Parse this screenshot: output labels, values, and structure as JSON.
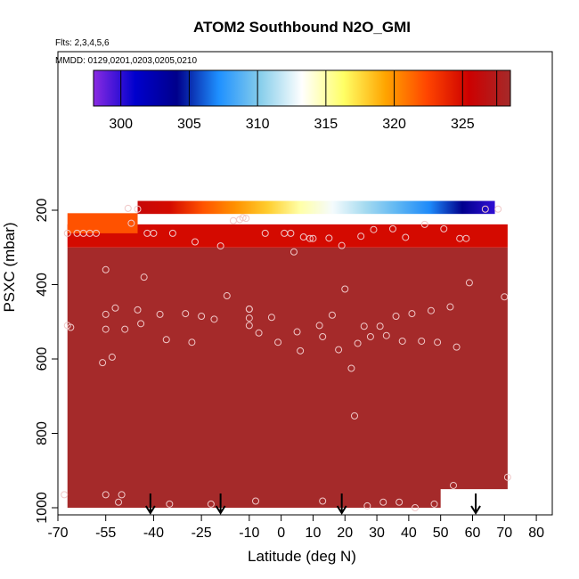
{
  "chart_data": {
    "type": "heatmap",
    "title": "ATOM2 Southbound N2O_GMI",
    "subtitle_flights": "Flts: 2,3,4,5,6",
    "subtitle_dates": "MMDD: 0129,0201,0203,0205,0210",
    "xlabel": "Latitude (deg N)",
    "ylabel": "PSXC (mbar)",
    "xlim": [
      -70,
      85
    ],
    "ylim": [
      1020,
      0
    ],
    "xticks": [
      "-70",
      "-55",
      "-40",
      "-25",
      "-10",
      "0",
      "10",
      "20",
      "30",
      "40",
      "50",
      "60",
      "70",
      "80"
    ],
    "xtick_values": [
      -70,
      -55,
      -40,
      -25,
      -10,
      0,
      10,
      20,
      30,
      40,
      50,
      60,
      70,
      80
    ],
    "yticks": [
      "200",
      "400",
      "600",
      "800",
      "1000"
    ],
    "ytick_values": [
      200,
      400,
      600,
      800,
      1000
    ],
    "colorbar": {
      "range": [
        298,
        328.5
      ],
      "ticks": [
        "300",
        "305",
        "310",
        "315",
        "320",
        "325"
      ],
      "tick_values": [
        300,
        305,
        310,
        315,
        320,
        325
      ],
      "colors": [
        "#8a2be2",
        "#0000cd",
        "#00008b",
        "#1e90ff",
        "#87ceeb",
        "#ffffff",
        "#ffff66",
        "#ffa500",
        "#ff4500",
        "#cd0000",
        "#a52a2a"
      ]
    },
    "field": {
      "value_low_troposphere": 328.5,
      "value_upper_layer": 325,
      "lat_range": [
        -67,
        71
      ],
      "pressure_range": [
        175,
        1000
      ]
    },
    "top_stratospheric_band": [
      {
        "lat": -45,
        "n2o": 326
      },
      {
        "lat": -35,
        "n2o": 325
      },
      {
        "lat": -25,
        "n2o": 322
      },
      {
        "lat": -15,
        "n2o": 320
      },
      {
        "lat": -5,
        "n2o": 318
      },
      {
        "lat": 5,
        "n2o": 315
      },
      {
        "lat": 15,
        "n2o": 313
      },
      {
        "lat": 25,
        "n2o": 311
      },
      {
        "lat": 35,
        "n2o": 309
      },
      {
        "lat": 45,
        "n2o": 307
      },
      {
        "lat": 55,
        "n2o": 304
      },
      {
        "lat": 65,
        "n2o": 300
      }
    ],
    "observation_points": [
      {
        "lat": -68,
        "p": 965
      },
      {
        "lat": -67,
        "p": 510
      },
      {
        "lat": -66,
        "p": 515
      },
      {
        "lat": -67,
        "p": 262
      },
      {
        "lat": -64,
        "p": 262
      },
      {
        "lat": -62,
        "p": 262
      },
      {
        "lat": -60,
        "p": 262
      },
      {
        "lat": -58,
        "p": 262
      },
      {
        "lat": -55,
        "p": 480
      },
      {
        "lat": -55,
        "p": 520
      },
      {
        "lat": -56,
        "p": 610
      },
      {
        "lat": -55,
        "p": 360
      },
      {
        "lat": -55,
        "p": 965
      },
      {
        "lat": -53,
        "p": 595
      },
      {
        "lat": -51,
        "p": 985
      },
      {
        "lat": -52,
        "p": 463
      },
      {
        "lat": -50,
        "p": 965
      },
      {
        "lat": -49,
        "p": 520
      },
      {
        "lat": -48,
        "p": 195
      },
      {
        "lat": -47,
        "p": 235
      },
      {
        "lat": -45,
        "p": 197
      },
      {
        "lat": -45,
        "p": 468
      },
      {
        "lat": -43,
        "p": 380
      },
      {
        "lat": -44,
        "p": 505
      },
      {
        "lat": -42,
        "p": 262
      },
      {
        "lat": -40,
        "p": 262
      },
      {
        "lat": -38,
        "p": 480
      },
      {
        "lat": -36,
        "p": 548
      },
      {
        "lat": -35,
        "p": 990
      },
      {
        "lat": -34,
        "p": 262
      },
      {
        "lat": -30,
        "p": 478
      },
      {
        "lat": -28,
        "p": 555
      },
      {
        "lat": -27,
        "p": 285
      },
      {
        "lat": -25,
        "p": 485
      },
      {
        "lat": -22,
        "p": 990
      },
      {
        "lat": -21,
        "p": 493
      },
      {
        "lat": -19,
        "p": 296
      },
      {
        "lat": -17,
        "p": 430
      },
      {
        "lat": -15,
        "p": 228
      },
      {
        "lat": -13,
        "p": 225
      },
      {
        "lat": -12,
        "p": 220
      },
      {
        "lat": -11,
        "p": 222
      },
      {
        "lat": -10,
        "p": 466
      },
      {
        "lat": -10,
        "p": 466
      },
      {
        "lat": -10,
        "p": 490
      },
      {
        "lat": -10,
        "p": 510
      },
      {
        "lat": -8,
        "p": 982
      },
      {
        "lat": -7,
        "p": 530
      },
      {
        "lat": -5,
        "p": 262
      },
      {
        "lat": -3,
        "p": 488
      },
      {
        "lat": -1,
        "p": 555
      },
      {
        "lat": 1,
        "p": 262
      },
      {
        "lat": 3,
        "p": 262
      },
      {
        "lat": 4,
        "p": 312
      },
      {
        "lat": 5,
        "p": 527
      },
      {
        "lat": 6,
        "p": 578
      },
      {
        "lat": 7,
        "p": 272
      },
      {
        "lat": 9,
        "p": 276
      },
      {
        "lat": 10,
        "p": 276
      },
      {
        "lat": 12,
        "p": 510
      },
      {
        "lat": 13,
        "p": 540
      },
      {
        "lat": 13,
        "p": 982
      },
      {
        "lat": 15,
        "p": 275
      },
      {
        "lat": 16,
        "p": 482
      },
      {
        "lat": 18,
        "p": 575
      },
      {
        "lat": 19,
        "p": 295
      },
      {
        "lat": 20,
        "p": 412
      },
      {
        "lat": 22,
        "p": 625
      },
      {
        "lat": 23,
        "p": 753
      },
      {
        "lat": 24,
        "p": 558
      },
      {
        "lat": 25,
        "p": 270
      },
      {
        "lat": 26,
        "p": 512
      },
      {
        "lat": 27,
        "p": 995
      },
      {
        "lat": 28,
        "p": 540
      },
      {
        "lat": 29,
        "p": 252
      },
      {
        "lat": 31,
        "p": 512
      },
      {
        "lat": 32,
        "p": 985
      },
      {
        "lat": 33,
        "p": 537
      },
      {
        "lat": 35,
        "p": 250
      },
      {
        "lat": 36,
        "p": 485
      },
      {
        "lat": 37,
        "p": 985
      },
      {
        "lat": 38,
        "p": 552
      },
      {
        "lat": 39,
        "p": 273
      },
      {
        "lat": 41,
        "p": 478
      },
      {
        "lat": 42,
        "p": 1000
      },
      {
        "lat": 44,
        "p": 552
      },
      {
        "lat": 45,
        "p": 238
      },
      {
        "lat": 47,
        "p": 470
      },
      {
        "lat": 48,
        "p": 990
      },
      {
        "lat": 49,
        "p": 555
      },
      {
        "lat": 51,
        "p": 250
      },
      {
        "lat": 53,
        "p": 460
      },
      {
        "lat": 54,
        "p": 940
      },
      {
        "lat": 55,
        "p": 568
      },
      {
        "lat": 56,
        "p": 276
      },
      {
        "lat": 58,
        "p": 276
      },
      {
        "lat": 59,
        "p": 395
      },
      {
        "lat": 64,
        "p": 197
      },
      {
        "lat": 68,
        "p": 197
      },
      {
        "lat": 70,
        "p": 433
      },
      {
        "lat": 71,
        "p": 918
      }
    ],
    "arrows_lat": [
      -41,
      -19,
      19,
      61
    ]
  }
}
